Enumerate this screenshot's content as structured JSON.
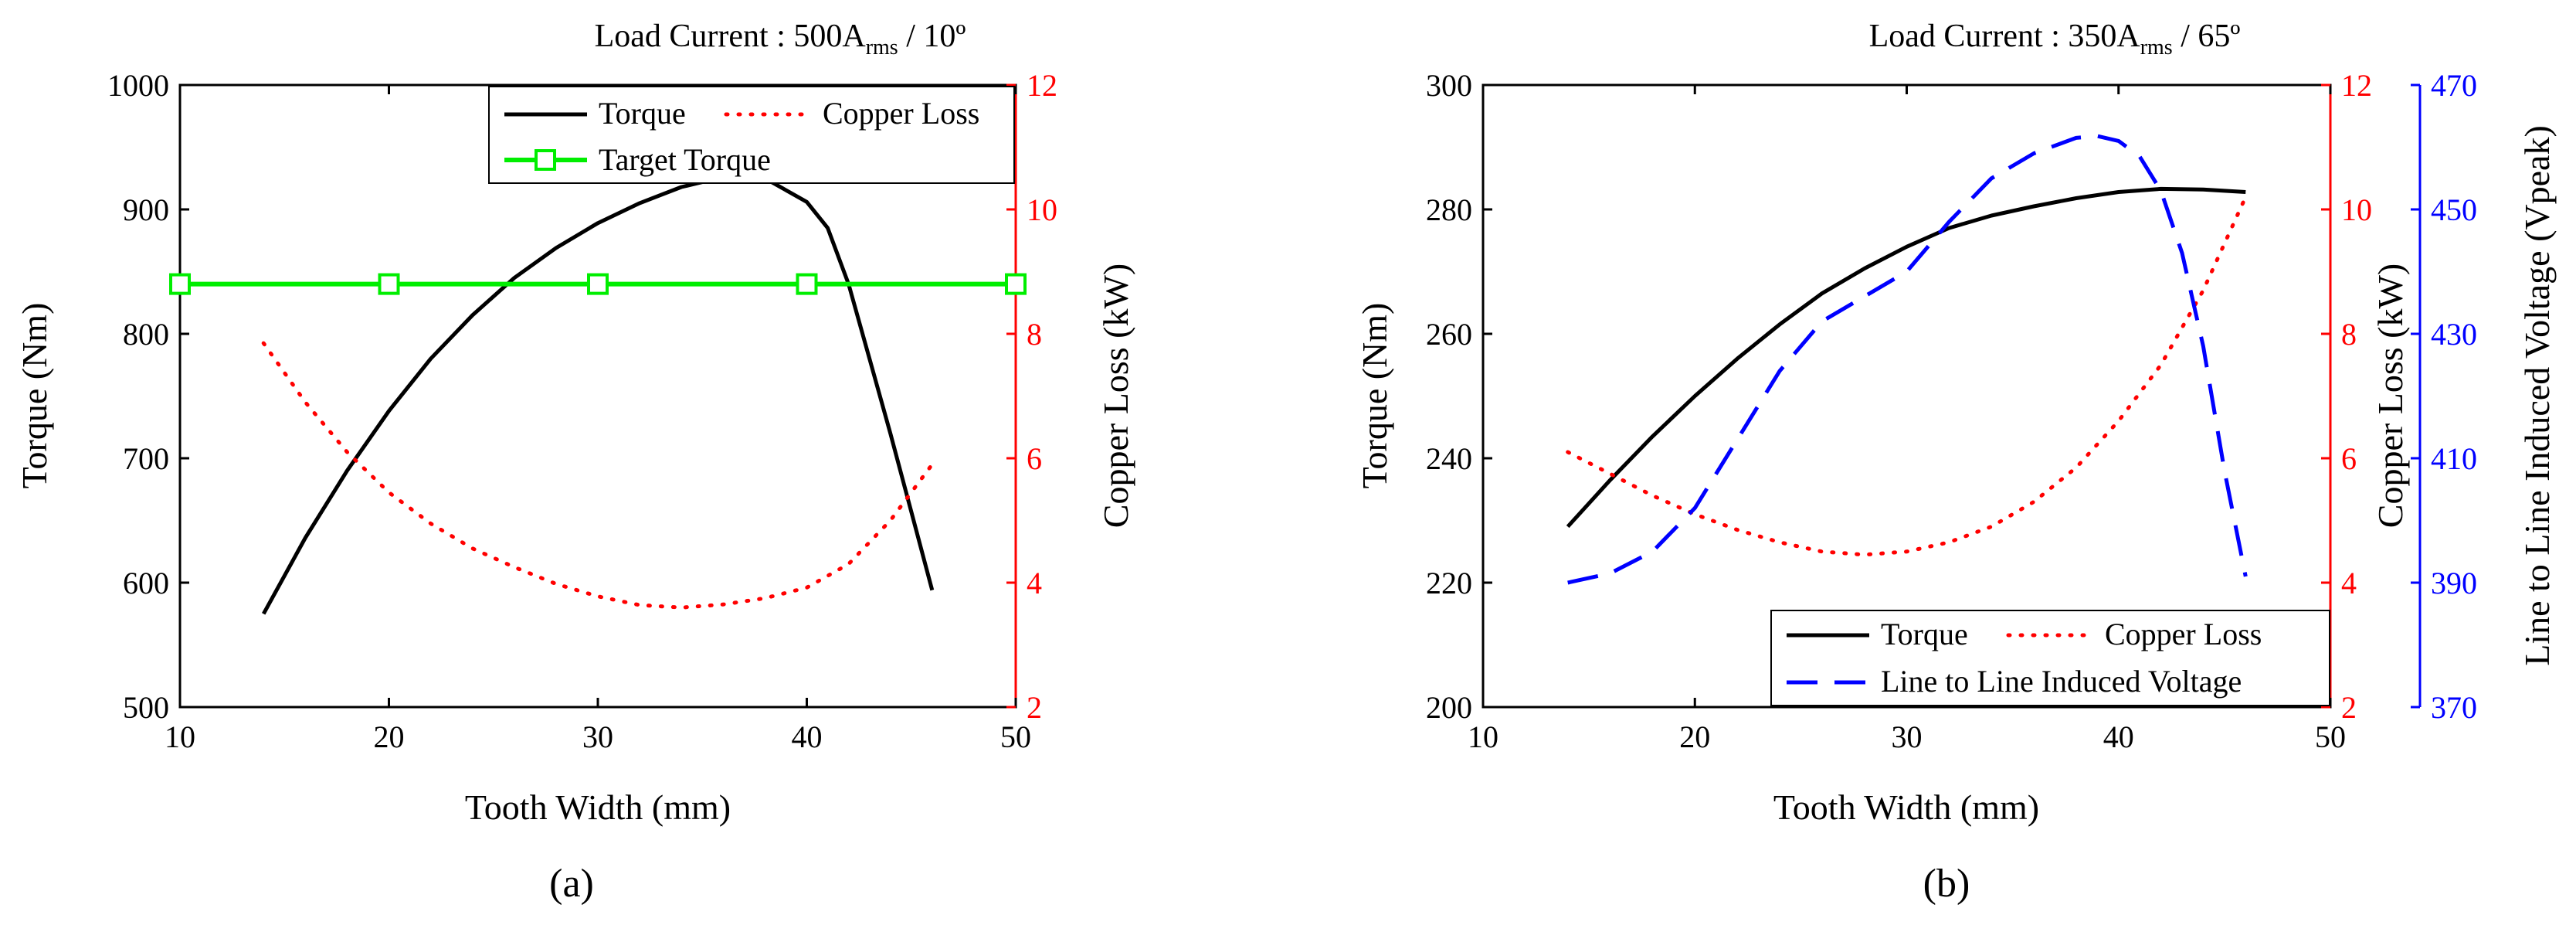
{
  "colors": {
    "torque": "#000000",
    "copper": "#ff0000",
    "target": "#00ee00",
    "voltage": "#0000ff",
    "axis": "#000000"
  },
  "chart_data": [
    {
      "type": "line",
      "panel_label": "(a)",
      "title_prefix": "Load Current : 500A",
      "title_sub": "rms",
      "title_suffix": " / 10º",
      "xlabel": "Tooth Width (mm)",
      "ylabel": "Torque (Nm)",
      "y2label": "Copper Loss (kW)",
      "xlim": [
        10,
        50
      ],
      "ylim": [
        500,
        1000
      ],
      "y2lim": [
        2,
        12
      ],
      "xticks": [
        "10",
        "20",
        "30",
        "40",
        "50"
      ],
      "yticks": [
        "500",
        "600",
        "700",
        "800",
        "900",
        "1000"
      ],
      "y2ticks": [
        "2",
        "4",
        "6",
        "8",
        "10",
        "12"
      ],
      "legend": {
        "position": "top-right",
        "torque": "Torque",
        "copper": "Copper Loss",
        "target": "Target Torque"
      },
      "series": [
        {
          "name": "Torque",
          "axis": "left",
          "style": "solid",
          "x": [
            14,
            16,
            18,
            20,
            22,
            24,
            26,
            28,
            30,
            32,
            34,
            36,
            38,
            40,
            41,
            42,
            43,
            44,
            45,
            46
          ],
          "y": [
            575,
            636,
            690,
            738,
            780,
            815,
            845,
            869,
            889,
            905,
            918,
            926,
            925,
            906,
            885,
            840,
            780,
            720,
            657,
            594
          ]
        },
        {
          "name": "Copper Loss",
          "axis": "right",
          "style": "dotted",
          "x": [
            14,
            16,
            18,
            20,
            22,
            24,
            26,
            28,
            30,
            32,
            34,
            36,
            38,
            40,
            42,
            44,
            46
          ],
          "y": [
            7.85,
            6.9,
            6.1,
            5.45,
            4.95,
            4.55,
            4.25,
            3.98,
            3.78,
            3.64,
            3.6,
            3.65,
            3.75,
            3.92,
            4.3,
            5.0,
            5.9
          ]
        },
        {
          "name": "Target Torque",
          "axis": "left",
          "style": "solid-marker",
          "x": [
            10,
            20,
            30,
            40,
            50
          ],
          "y": [
            840,
            840,
            840,
            840,
            840
          ]
        }
      ]
    },
    {
      "type": "line",
      "panel_label": "(b)",
      "title_prefix": "Load Current : 350A",
      "title_sub": "rms",
      "title_suffix": " / 65º",
      "xlabel": "Tooth Width (mm)",
      "ylabel": "Torque (Nm)",
      "y2label": "Copper Loss (kW)",
      "y3label": "Line to Line Induced Voltage (Vpeak)",
      "xlim": [
        10,
        50
      ],
      "ylim": [
        200,
        300
      ],
      "y2lim": [
        2,
        12
      ],
      "y3lim": [
        370,
        470
      ],
      "xticks": [
        "10",
        "20",
        "30",
        "40",
        "50"
      ],
      "yticks": [
        "200",
        "220",
        "240",
        "260",
        "280",
        "300"
      ],
      "y2ticks": [
        "2",
        "4",
        "6",
        "8",
        "10",
        "12"
      ],
      "y3ticks": [
        "370",
        "390",
        "410",
        "430",
        "450",
        "470"
      ],
      "legend": {
        "position": "bottom-right",
        "torque": "Torque",
        "copper": "Copper Loss",
        "voltage": "Line to Line Induced Voltage"
      },
      "series": [
        {
          "name": "Torque",
          "axis": "left",
          "style": "solid",
          "x": [
            14,
            16,
            18,
            20,
            22,
            24,
            26,
            28,
            30,
            32,
            34,
            36,
            38,
            40,
            42,
            44,
            46
          ],
          "y": [
            229,
            236.5,
            243.5,
            250,
            256,
            261.5,
            266.5,
            270.5,
            274,
            277,
            279,
            280.5,
            281.8,
            282.8,
            283.3,
            283.2,
            282.8
          ]
        },
        {
          "name": "Copper Loss",
          "axis": "right",
          "style": "dotted",
          "x": [
            14,
            16,
            18,
            20,
            22,
            24,
            26,
            28,
            30,
            32,
            34,
            36,
            38,
            40,
            42,
            44,
            46
          ],
          "y": [
            6.1,
            5.75,
            5.4,
            5.1,
            4.85,
            4.65,
            4.5,
            4.45,
            4.5,
            4.65,
            4.9,
            5.3,
            5.85,
            6.6,
            7.5,
            8.7,
            10.2
          ]
        },
        {
          "name": "Line to Line Induced Voltage",
          "axis": "right2",
          "style": "dashed",
          "x": [
            14,
            16,
            18,
            20,
            22,
            24,
            26,
            28,
            30,
            32,
            34,
            36,
            38,
            39,
            40,
            41,
            42,
            43,
            44,
            45,
            46
          ],
          "y": [
            390,
            391.5,
            395,
            402,
            413,
            424,
            432,
            436,
            440,
            448,
            455,
            459,
            461.5,
            461.8,
            461,
            458.5,
            453,
            443,
            428,
            408,
            391
          ]
        }
      ]
    }
  ]
}
